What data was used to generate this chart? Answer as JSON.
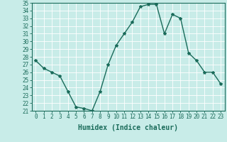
{
  "x": [
    0,
    1,
    2,
    3,
    4,
    5,
    6,
    7,
    8,
    9,
    10,
    11,
    12,
    13,
    14,
    15,
    16,
    17,
    18,
    19,
    20,
    21,
    22,
    23
  ],
  "y": [
    27.5,
    26.5,
    26.0,
    25.5,
    23.5,
    21.5,
    21.3,
    21.0,
    23.5,
    27.0,
    29.5,
    31.0,
    32.5,
    34.5,
    34.8,
    34.8,
    31.0,
    33.5,
    33.0,
    28.5,
    27.5,
    26.0,
    26.0,
    24.5
  ],
  "line_color": "#1a6b5a",
  "marker": "*",
  "marker_size": 3,
  "bg_color": "#c8ece8",
  "grid_color": "#ffffff",
  "xlabel": "Humidex (Indice chaleur)",
  "ylim": [
    21,
    35
  ],
  "xlim": [
    -0.5,
    23.5
  ],
  "yticks": [
    21,
    22,
    23,
    24,
    25,
    26,
    27,
    28,
    29,
    30,
    31,
    32,
    33,
    34,
    35
  ],
  "xticks": [
    0,
    1,
    2,
    3,
    4,
    5,
    6,
    7,
    8,
    9,
    10,
    11,
    12,
    13,
    14,
    15,
    16,
    17,
    18,
    19,
    20,
    21,
    22,
    23
  ],
  "xlabel_fontsize": 7,
  "tick_fontsize": 5.5,
  "line_width": 1.0
}
